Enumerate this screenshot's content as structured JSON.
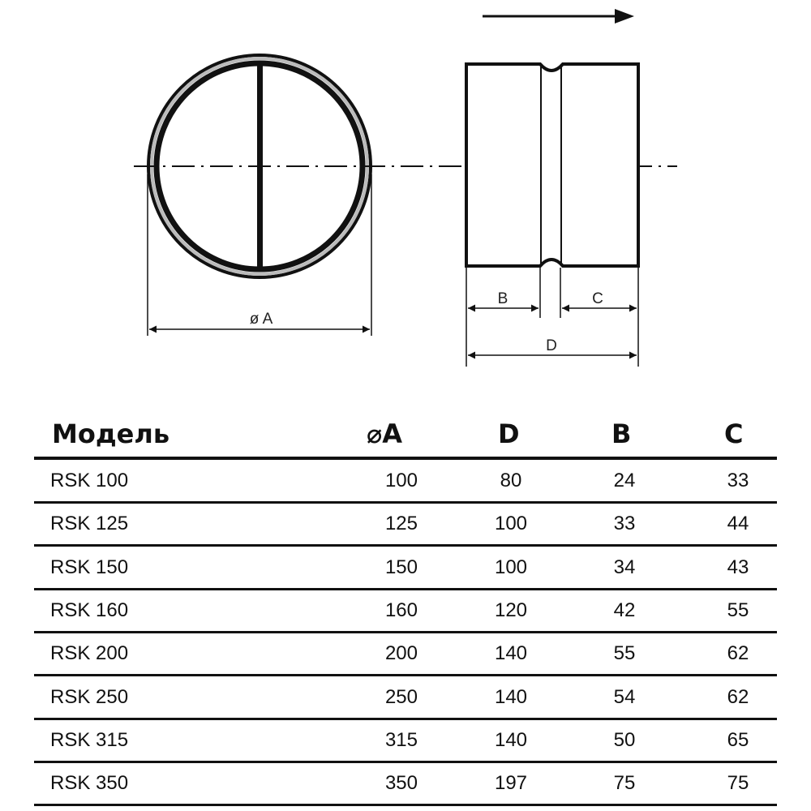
{
  "drawing": {
    "label_diameter": "ø A",
    "label_b": "B",
    "label_c": "C",
    "label_d": "D"
  },
  "table": {
    "headers": {
      "model": "Модель",
      "a": "⌀A",
      "d": "D",
      "b": "B",
      "c": "C"
    },
    "rows": [
      {
        "model": "RSK 100",
        "a": "100",
        "d": "80",
        "b": "24",
        "c": "33"
      },
      {
        "model": "RSK 125",
        "a": "125",
        "d": "100",
        "b": "33",
        "c": "44"
      },
      {
        "model": "RSK 150",
        "a": "150",
        "d": "100",
        "b": "34",
        "c": "43"
      },
      {
        "model": "RSK 160",
        "a": "160",
        "d": "120",
        "b": "42",
        "c": "55"
      },
      {
        "model": "RSK 200",
        "a": "200",
        "d": "140",
        "b": "55",
        "c": "62"
      },
      {
        "model": "RSK 250",
        "a": "250",
        "d": "140",
        "b": "54",
        "c": "62"
      },
      {
        "model": "RSK 315",
        "a": "315",
        "d": "140",
        "b": "50",
        "c": "65"
      },
      {
        "model": "RSK 350",
        "a": "350",
        "d": "197",
        "b": "75",
        "c": "75"
      }
    ]
  }
}
